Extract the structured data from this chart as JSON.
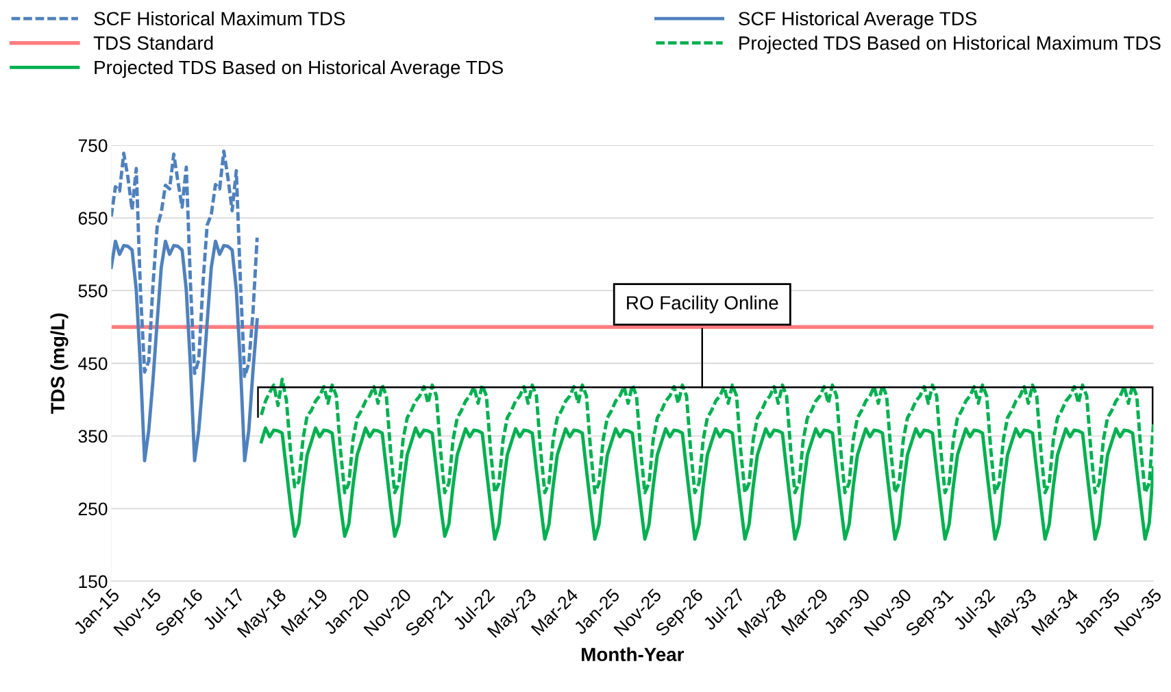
{
  "chart_data": {
    "type": "line",
    "xlabel": "Month-Year",
    "ylabel": "TDS (mg/L)",
    "categories": [
      "Jan-15",
      null,
      null,
      null,
      null,
      null,
      null,
      null,
      null,
      null,
      "Nov-15",
      null,
      null,
      null,
      null,
      null,
      null,
      null,
      null,
      null,
      "Sep-16",
      null,
      null,
      null,
      null,
      null,
      null,
      null,
      null,
      null,
      "Jul-17",
      null,
      null,
      null,
      null,
      null,
      null,
      null,
      null,
      null,
      "May-18",
      null,
      null,
      null,
      null,
      null,
      null,
      null,
      null,
      null,
      "Mar-19",
      null,
      null,
      null,
      null,
      null,
      null,
      null,
      null,
      null,
      "Jan-20",
      null,
      null,
      null,
      null,
      null,
      null,
      null,
      null,
      null,
      "Nov-20",
      null,
      null,
      null,
      null,
      null,
      null,
      null,
      null,
      null,
      "Sep-21",
      null,
      null,
      null,
      null,
      null,
      null,
      null,
      null,
      null,
      "Jul-22",
      null,
      null,
      null,
      null,
      null,
      null,
      null,
      null,
      null,
      "May-23",
      null,
      null,
      null,
      null,
      null,
      null,
      null,
      null,
      null,
      "Mar-24",
      null,
      null,
      null,
      null,
      null,
      null,
      null,
      null,
      null,
      "Jan-25",
      null,
      null,
      null,
      null,
      null,
      null,
      null,
      null,
      null,
      "Nov-25",
      null,
      null,
      null,
      null,
      null,
      null,
      null,
      null,
      null,
      "Sep-26",
      null,
      null,
      null,
      null,
      null,
      null,
      null,
      null,
      null,
      "Jul-27",
      null,
      null,
      null,
      null,
      null,
      null,
      null,
      null,
      null,
      "May-28",
      null,
      null,
      null,
      null,
      null,
      null,
      null,
      null,
      null,
      "Mar-29",
      null,
      null,
      null,
      null,
      null,
      null,
      null,
      null,
      null,
      "Jan-30",
      null,
      null,
      null,
      null,
      null,
      null,
      null,
      null,
      null,
      "Nov-30",
      null,
      null,
      null,
      null,
      null,
      null,
      null,
      null,
      null,
      "Sep-31",
      null,
      null,
      null,
      null,
      null,
      null,
      null,
      null,
      null,
      "Jul-32",
      null,
      null,
      null,
      null,
      null,
      null,
      null,
      null,
      null,
      "May-33",
      null,
      null,
      null,
      null,
      null,
      null,
      null,
      null,
      null,
      "Mar-34",
      null,
      null,
      null,
      null,
      null,
      null,
      null,
      null,
      null,
      "Jan-35",
      null,
      null,
      null,
      null,
      null,
      null,
      null,
      null,
      null,
      "Nov-35"
    ],
    "series": [
      {
        "name": "SCF Historical Maximum TDS",
        "color": "#4f81bd",
        "line_style": "dashed",
        "values": [
          652,
          693,
          687,
          739,
          706,
          661,
          718,
          551,
          438,
          453,
          557,
          637,
          658,
          695,
          690,
          738,
          700,
          665,
          720,
          560,
          436,
          455,
          560,
          640,
          655,
          696,
          690,
          742,
          705,
          660,
          715,
          560,
          432,
          450,
          520,
          623,
          null,
          null,
          null,
          null,
          null,
          null,
          null,
          null,
          null,
          null,
          null,
          null,
          null,
          null,
          null,
          null,
          null,
          null,
          null,
          null,
          null,
          null,
          null,
          null,
          null,
          null,
          null,
          null,
          null,
          null,
          null,
          null,
          null,
          null,
          null,
          null,
          null,
          null,
          null,
          null,
          null,
          null,
          null,
          null,
          null,
          null,
          null,
          null,
          null,
          null,
          null,
          null,
          null,
          null,
          null,
          null,
          null,
          null,
          null,
          null,
          null,
          null,
          null,
          null,
          null,
          null,
          null,
          null,
          null,
          null,
          null,
          null,
          null,
          null,
          null,
          null,
          null,
          null,
          null,
          null,
          null,
          null,
          null,
          null,
          null,
          null,
          null,
          null,
          null,
          null,
          null,
          null,
          null,
          null,
          null,
          null,
          null,
          null,
          null,
          null,
          null,
          null,
          null,
          null,
          null,
          null,
          null,
          null,
          null,
          null,
          null,
          null,
          null,
          null,
          null,
          null,
          null,
          null,
          null,
          null,
          null,
          null,
          null,
          null,
          null,
          null,
          null,
          null,
          null,
          null,
          null,
          null,
          null,
          null,
          null,
          null,
          null,
          null,
          null,
          null,
          null,
          null,
          null,
          null,
          null,
          null,
          null,
          null,
          null,
          null,
          null,
          null,
          null,
          null,
          null,
          null,
          null,
          null,
          null,
          null,
          null,
          null,
          null,
          null,
          null,
          null,
          null,
          null,
          null,
          null,
          null,
          null,
          null,
          null,
          null,
          null,
          null,
          null,
          null,
          null,
          null,
          null,
          null,
          null,
          null,
          null,
          null,
          null,
          null,
          null,
          null,
          null,
          null,
          null,
          null,
          null,
          null,
          null,
          null,
          null,
          null,
          null,
          null,
          null,
          null,
          null,
          null,
          null,
          null,
          null,
          null,
          null,
          null,
          null,
          null
        ]
      },
      {
        "name": "SCF Historical Average TDS",
        "color": "#4f81bd",
        "line_style": "solid",
        "values": [
          582,
          618,
          600,
          612,
          611,
          606,
          551,
          446,
          316,
          358,
          426,
          506,
          582,
          618,
          600,
          612,
          611,
          606,
          551,
          446,
          316,
          358,
          426,
          506,
          582,
          618,
          600,
          612,
          611,
          606,
          551,
          446,
          316,
          358,
          440,
          510,
          null,
          null,
          null,
          null,
          null,
          null,
          null,
          null,
          null,
          null,
          null,
          null,
          null,
          null,
          null,
          null,
          null,
          null,
          null,
          null,
          null,
          null,
          null,
          null,
          null,
          null,
          null,
          null,
          null,
          null,
          null,
          null,
          null,
          null,
          null,
          null,
          null,
          null,
          null,
          null,
          null,
          null,
          null,
          null,
          null,
          null,
          null,
          null,
          null,
          null,
          null,
          null,
          null,
          null,
          null,
          null,
          null,
          null,
          null,
          null,
          null,
          null,
          null,
          null,
          null,
          null,
          null,
          null,
          null,
          null,
          null,
          null,
          null,
          null,
          null,
          null,
          null,
          null,
          null,
          null,
          null,
          null,
          null,
          null,
          null,
          null,
          null,
          null,
          null,
          null,
          null,
          null,
          null,
          null,
          null,
          null,
          null,
          null,
          null,
          null,
          null,
          null,
          null,
          null,
          null,
          null,
          null,
          null,
          null,
          null,
          null,
          null,
          null,
          null,
          null,
          null,
          null,
          null,
          null,
          null,
          null,
          null,
          null,
          null,
          null,
          null,
          null,
          null,
          null,
          null,
          null,
          null,
          null,
          null,
          null,
          null,
          null,
          null,
          null,
          null,
          null,
          null,
          null,
          null,
          null,
          null,
          null,
          null,
          null,
          null,
          null,
          null,
          null,
          null,
          null,
          null,
          null,
          null,
          null,
          null,
          null,
          null,
          null,
          null,
          null,
          null,
          null,
          null,
          null,
          null,
          null,
          null,
          null,
          null,
          null,
          null,
          null,
          null,
          null,
          null,
          null,
          null,
          null,
          null,
          null,
          null,
          null,
          null,
          null,
          null,
          null,
          null,
          null,
          null,
          null,
          null,
          null,
          null,
          null,
          null,
          null,
          null,
          null,
          null,
          null,
          null,
          null,
          null,
          null,
          null,
          null,
          null,
          null,
          null,
          null
        ]
      },
      {
        "name": "Projected TDS Based on Historical Maximum TDS",
        "color": "#00b050",
        "line_style": "dashed",
        "values": [
          null,
          null,
          null,
          null,
          null,
          null,
          null,
          null,
          null,
          null,
          null,
          null,
          null,
          null,
          null,
          null,
          null,
          null,
          null,
          null,
          null,
          null,
          null,
          null,
          null,
          null,
          null,
          null,
          null,
          null,
          null,
          null,
          null,
          null,
          null,
          null,
          379,
          398,
          410,
          420,
          392,
          428,
          400,
          330,
          280,
          287,
          346,
          378,
          385,
          398,
          405,
          418,
          395,
          420,
          405,
          330,
          272,
          285,
          345,
          375,
          385,
          398,
          405,
          418,
          395,
          420,
          405,
          330,
          272,
          285,
          345,
          375,
          385,
          398,
          405,
          418,
          395,
          420,
          405,
          330,
          272,
          285,
          345,
          375,
          385,
          398,
          405,
          418,
          395,
          420,
          405,
          330,
          272,
          285,
          345,
          375,
          385,
          398,
          405,
          418,
          395,
          420,
          405,
          330,
          272,
          285,
          345,
          375,
          385,
          398,
          405,
          418,
          395,
          420,
          405,
          330,
          272,
          285,
          345,
          375,
          385,
          398,
          405,
          418,
          395,
          420,
          405,
          330,
          272,
          285,
          345,
          375,
          385,
          398,
          405,
          418,
          395,
          420,
          405,
          330,
          272,
          285,
          345,
          375,
          385,
          398,
          405,
          418,
          395,
          420,
          405,
          330,
          272,
          285,
          345,
          375,
          385,
          398,
          405,
          418,
          395,
          420,
          405,
          330,
          272,
          285,
          345,
          375,
          385,
          398,
          405,
          418,
          395,
          420,
          405,
          330,
          272,
          285,
          345,
          375,
          385,
          398,
          405,
          418,
          395,
          420,
          405,
          330,
          272,
          285,
          345,
          375,
          385,
          398,
          405,
          418,
          395,
          420,
          405,
          330,
          272,
          285,
          345,
          375,
          385,
          398,
          405,
          418,
          395,
          420,
          405,
          330,
          272,
          285,
          345,
          375,
          385,
          398,
          405,
          418,
          395,
          420,
          405,
          330,
          272,
          285,
          345,
          375,
          385,
          398,
          405,
          418,
          395,
          420,
          405,
          330,
          272,
          285,
          345,
          375,
          385,
          398,
          405,
          418,
          395,
          420,
          405,
          330,
          272,
          285,
          367
        ]
      },
      {
        "name": "Projected TDS Based on Historical Average TDS",
        "color": "#00b050",
        "line_style": "solid",
        "values": [
          null,
          null,
          null,
          null,
          null,
          null,
          null,
          null,
          null,
          null,
          null,
          null,
          null,
          null,
          null,
          null,
          null,
          null,
          null,
          null,
          null,
          null,
          null,
          null,
          null,
          null,
          null,
          null,
          null,
          null,
          null,
          null,
          null,
          null,
          null,
          null,
          342,
          361,
          349,
          358,
          357,
          354,
          304,
          254,
          212,
          229,
          282,
          324,
          342,
          361,
          349,
          358,
          357,
          354,
          304,
          254,
          212,
          229,
          282,
          324,
          342,
          361,
          349,
          358,
          357,
          354,
          304,
          254,
          212,
          229,
          282,
          324,
          342,
          361,
          349,
          358,
          357,
          354,
          304,
          254,
          212,
          229,
          282,
          324,
          342,
          360,
          349,
          358,
          357,
          354,
          303,
          254,
          208,
          228,
          281,
          324,
          342,
          360,
          349,
          358,
          357,
          354,
          303,
          254,
          208,
          228,
          281,
          324,
          342,
          360,
          349,
          358,
          357,
          354,
          303,
          254,
          208,
          228,
          281,
          324,
          342,
          360,
          349,
          358,
          357,
          354,
          303,
          254,
          208,
          228,
          281,
          324,
          342,
          360,
          349,
          358,
          357,
          354,
          303,
          254,
          208,
          228,
          281,
          324,
          342,
          360,
          349,
          358,
          357,
          354,
          303,
          254,
          208,
          228,
          281,
          324,
          342,
          360,
          349,
          358,
          357,
          354,
          303,
          254,
          208,
          228,
          281,
          324,
          342,
          360,
          349,
          358,
          357,
          354,
          303,
          254,
          208,
          228,
          281,
          324,
          342,
          360,
          349,
          358,
          357,
          354,
          303,
          254,
          208,
          228,
          281,
          324,
          342,
          360,
          349,
          358,
          357,
          354,
          303,
          254,
          208,
          228,
          281,
          324,
          342,
          360,
          349,
          358,
          357,
          354,
          303,
          254,
          208,
          228,
          281,
          324,
          342,
          360,
          349,
          358,
          357,
          354,
          303,
          254,
          208,
          228,
          281,
          324,
          342,
          360,
          349,
          358,
          357,
          354,
          303,
          254,
          208,
          228,
          281,
          324,
          342,
          360,
          349,
          358,
          357,
          354,
          303,
          254,
          208,
          230,
          306
        ]
      }
    ],
    "ref_lines": [
      {
        "axis": "y",
        "value": 500,
        "label": "TDS Standard",
        "color": "#ff7c80"
      }
    ],
    "ylim": [
      150,
      750
    ],
    "yticks": [
      150,
      250,
      350,
      450,
      550,
      650,
      750
    ],
    "grid": "y",
    "legend": "top",
    "marker": "none",
    "annotations": [
      "RO Facility Online"
    ]
  }
}
